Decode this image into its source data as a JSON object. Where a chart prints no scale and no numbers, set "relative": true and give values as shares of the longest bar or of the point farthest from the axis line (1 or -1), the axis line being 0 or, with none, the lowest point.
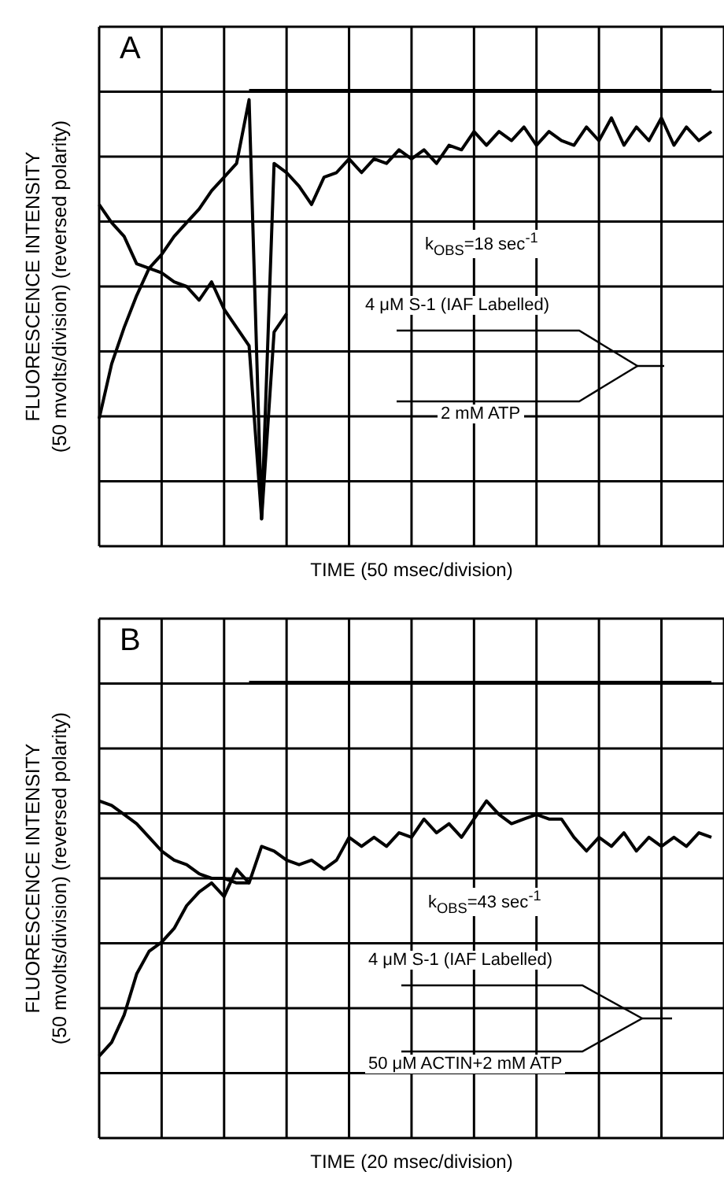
{
  "chart_data": [
    {
      "type": "line",
      "title": "A",
      "xlabel": "TIME (50 msec/division)",
      "ylabel": "FLUORESCENCE INTENSITY\n(50 mvolts/division) (reversed polarity)",
      "relative": true,
      "grid": true,
      "marker": "none",
      "line_style": "solid",
      "categories": [
        null,
        null,
        null,
        null,
        null,
        null,
        null,
        null,
        null,
        null,
        null,
        null,
        null,
        null,
        null,
        null,
        null,
        null,
        null,
        null,
        null,
        null,
        null,
        null,
        null,
        null,
        null,
        null,
        null,
        null,
        null,
        null,
        null,
        null,
        null,
        null,
        null,
        null,
        null,
        null,
        null,
        null,
        null,
        null,
        null,
        null,
        null,
        null,
        null,
        null
      ],
      "annotations": [
        "k$_{OBS}$=18 sec$^{-1}$",
        "4 μM S-1 (IAF Labelled)",
        "2 mM ATP"
      ],
      "series": [
        {
          "type": "line",
          "color": "#000000",
          "values": [
            0.28,
            0.4,
            0.48,
            0.55,
            0.61,
            0.64,
            0.68,
            0.71,
            0.74,
            0.78,
            0.81,
            0.84,
            0.98,
            0.06,
            0.84,
            0.82,
            0.79,
            0.75,
            0.81,
            0.82,
            0.85,
            0.82,
            0.85,
            0.84,
            0.87,
            0.85,
            0.87,
            0.84,
            0.88,
            0.87,
            0.91,
            0.88,
            0.91,
            0.89,
            0.92,
            0.88,
            0.91,
            0.89,
            0.88,
            0.92,
            0.89,
            0.94,
            0.88,
            0.92,
            0.89,
            0.94,
            0.88,
            0.92,
            0.89,
            0.91
          ]
        },
        {
          "type": "line",
          "color": "#000000",
          "values": [
            0.75,
            0.71,
            0.68,
            0.62,
            0.61,
            0.6,
            0.58,
            0.57,
            0.54,
            0.58,
            0.52,
            0.48,
            0.44,
            0.06,
            0.47,
            0.51,
            null,
            null,
            null,
            null,
            null,
            null,
            null,
            null,
            null,
            null,
            null,
            null,
            null,
            null,
            null,
            null,
            null,
            null,
            null,
            null,
            null,
            null,
            null,
            null,
            null,
            null,
            null,
            null,
            null,
            null,
            null,
            null,
            null,
            null
          ]
        },
        {
          "type": "step",
          "color": "#000000",
          "values": [
            null,
            null,
            null,
            null,
            null,
            null,
            null,
            null,
            null,
            null,
            null,
            null,
            1,
            1,
            1,
            1,
            1,
            1,
            1,
            1,
            1,
            1,
            1,
            1,
            1,
            1,
            1,
            1,
            1,
            1,
            1,
            1,
            1,
            1,
            1,
            1,
            1,
            1,
            1,
            1,
            1,
            1,
            1,
            1,
            1,
            1,
            1,
            1,
            1,
            1
          ]
        }
      ]
    },
    {
      "type": "line",
      "title": "B",
      "xlabel": "TIME (20 msec/division)",
      "ylabel": "FLUORESCENCE INTENSITY\n(50 mvolts/division) (reversed polarity)",
      "relative": true,
      "grid": true,
      "marker": "none",
      "line_style": "solid",
      "categories": [
        null,
        null,
        null,
        null,
        null,
        null,
        null,
        null,
        null,
        null,
        null,
        null,
        null,
        null,
        null,
        null,
        null,
        null,
        null,
        null,
        null,
        null,
        null,
        null,
        null,
        null,
        null,
        null,
        null,
        null,
        null,
        null,
        null,
        null,
        null,
        null,
        null,
        null,
        null,
        null,
        null,
        null,
        null,
        null,
        null,
        null,
        null,
        null,
        null,
        null
      ],
      "annotations": [
        "k$_{OBS}$=43 sec$^{-1}$",
        "4 μM S-1 (IAF Labelled)",
        "50 μM ACTIN+2 mM ATP"
      ],
      "series": [
        {
          "type": "line",
          "color": "#000000",
          "values": [
            0.18,
            0.21,
            0.27,
            0.36,
            0.41,
            0.43,
            0.46,
            0.51,
            0.54,
            0.56,
            0.53,
            0.59,
            0.56,
            0.64,
            0.63,
            0.61,
            0.6,
            0.61,
            0.59,
            0.61,
            0.66,
            0.64,
            0.66,
            0.64,
            0.67,
            0.66,
            0.7,
            0.67,
            0.69,
            0.66,
            0.7,
            0.74,
            0.71,
            0.69,
            0.7,
            0.71,
            0.7,
            0.7,
            0.66,
            0.63,
            0.66,
            0.64,
            0.67,
            0.63,
            0.66,
            0.64,
            0.66,
            0.64,
            0.67,
            0.66
          ]
        },
        {
          "type": "line",
          "color": "#000000",
          "values": [
            0.74,
            0.73,
            0.71,
            0.69,
            0.66,
            0.63,
            0.61,
            0.6,
            0.58,
            0.57,
            0.57,
            0.56,
            0.56,
            null,
            null,
            null,
            null,
            null,
            null,
            null,
            null,
            null,
            null,
            null,
            null,
            null,
            null,
            null,
            null,
            null,
            null,
            null,
            null,
            null,
            null,
            null,
            null,
            null,
            null,
            null,
            null,
            null,
            null,
            null,
            null,
            null,
            null,
            null,
            null,
            null
          ]
        },
        {
          "type": "step",
          "color": "#000000",
          "values": [
            null,
            null,
            null,
            null,
            null,
            null,
            null,
            null,
            null,
            null,
            null,
            null,
            1,
            1,
            1,
            1,
            1,
            1,
            1,
            1,
            1,
            1,
            1,
            1,
            1,
            1,
            1,
            1,
            1,
            1,
            1,
            1,
            1,
            1,
            1,
            1,
            1,
            1,
            1,
            1,
            1,
            1,
            1,
            1,
            1,
            1,
            1,
            1,
            1,
            1
          ]
        }
      ]
    }
  ]
}
